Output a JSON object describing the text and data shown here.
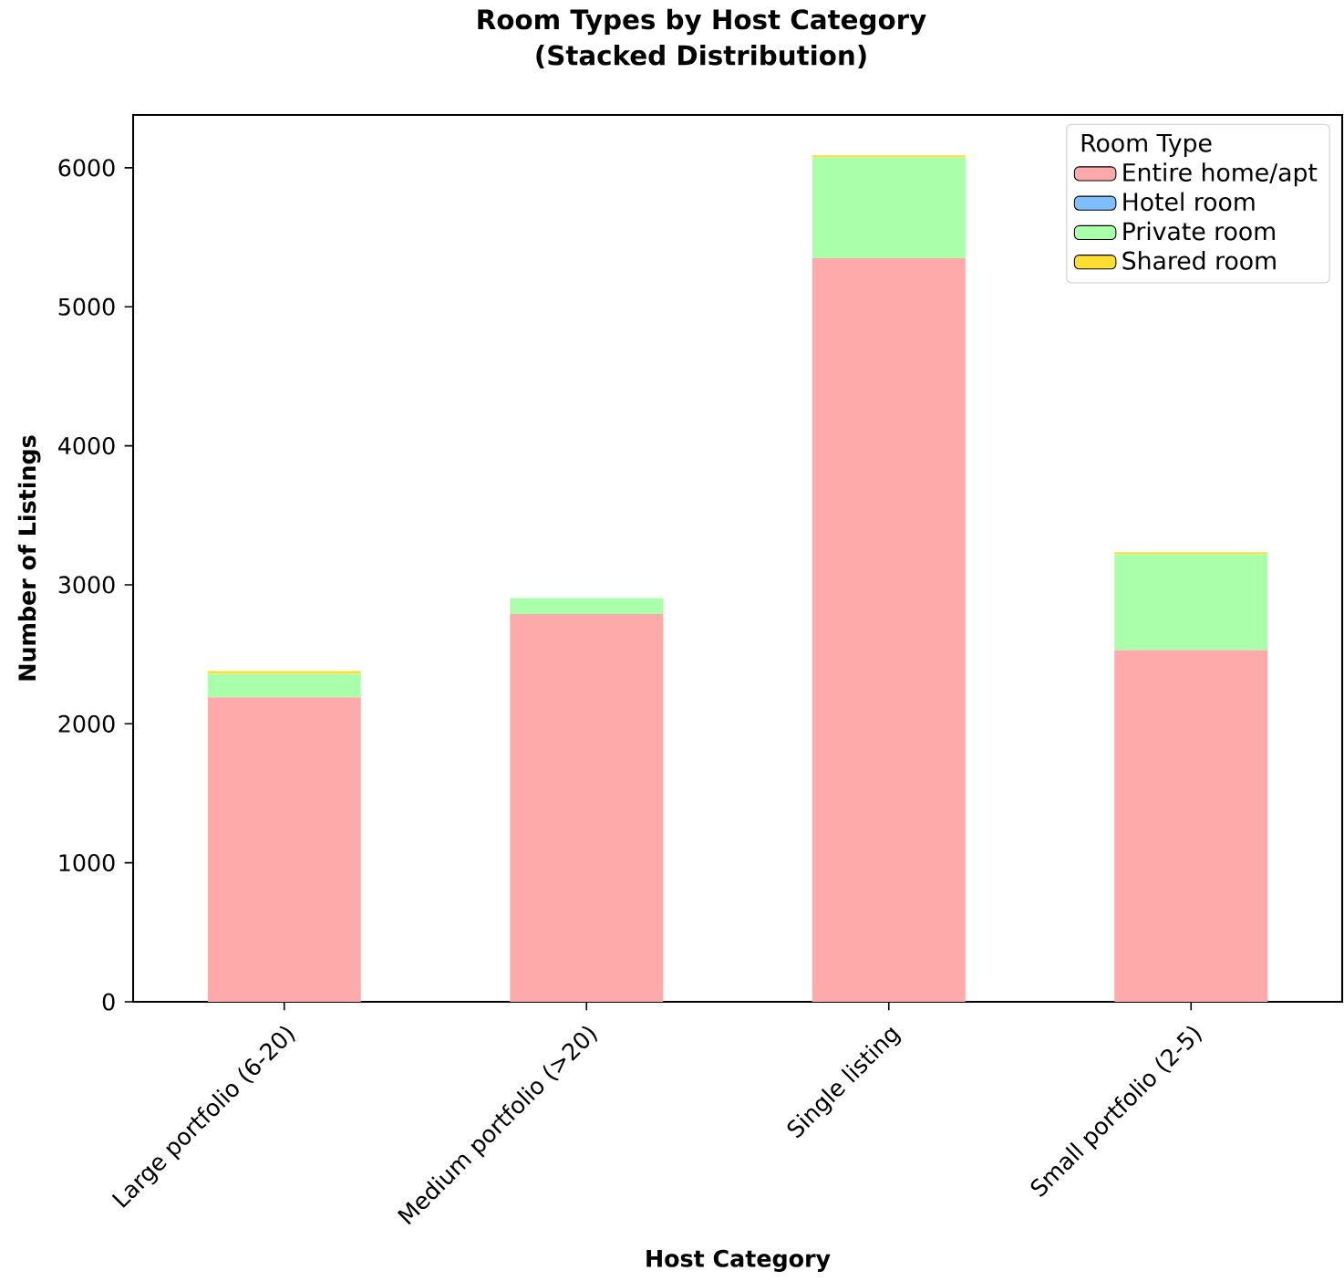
{
  "chart_data": {
    "type": "bar",
    "title": "Room Types by Host Category",
    "subtitle": "(Stacked Distribution)",
    "xlabel": "Host Category",
    "ylabel": "Number of Listings",
    "legend_title": "Room Type",
    "stacked": true,
    "legend": "top right",
    "categories": [
      "Large portfolio (6-20)",
      "Medium portfolio (>20)",
      "Single listing",
      "Small portfolio (2-5)"
    ],
    "series": [
      {
        "name": "Entire home/apt",
        "color": "#ffaaaa",
        "values": [
          2190,
          2790,
          5350,
          2530
        ]
      },
      {
        "name": "Hotel room",
        "color": "#80bfff",
        "values": [
          0,
          0,
          0,
          0
        ]
      },
      {
        "name": "Private room",
        "color": "#aaffaa",
        "values": [
          170,
          115,
          725,
          690
        ]
      },
      {
        "name": "Shared room",
        "color": "#ffdd33",
        "values": [
          20,
          0,
          15,
          15
        ]
      }
    ],
    "ylim": [
      0,
      6380
    ],
    "yticks": [
      0,
      1000,
      2000,
      3000,
      4000,
      5000,
      6000
    ]
  }
}
